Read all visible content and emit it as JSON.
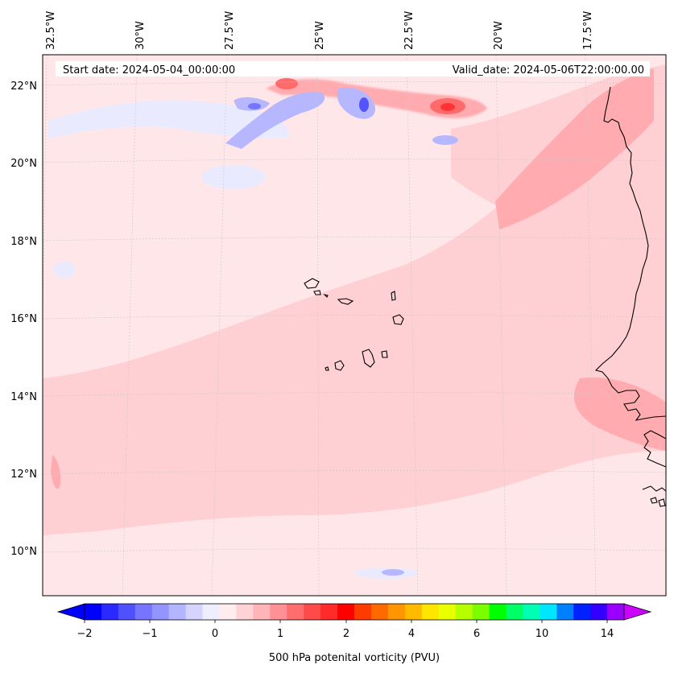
{
  "header": {
    "start_date": "Start date: 2024-05-04_00:00:00",
    "valid_date": "Valid_date: 2024-05-06T22:00:00.00"
  },
  "map": {
    "lon_labels": [
      "32.5°W",
      "30°W",
      "27.5°W",
      "25°W",
      "22.5°W",
      "20°W",
      "17.5°W"
    ],
    "lat_labels": [
      "22°N",
      "20°N",
      "18°N",
      "16°N",
      "14°N",
      "12°N",
      "10°N"
    ],
    "field_colors": {
      "background": "#ffe6e9",
      "light_red": "#ffd0d3",
      "medium_red": "#ffabaf",
      "strong_red": "#ff6b6b",
      "light_blue": "#eaeaff",
      "medium_blue": "#b7b7ff",
      "strong_blue": "#5454ff",
      "coastline": "#000000"
    }
  },
  "colorbar": {
    "label": "500 hPa potenital vorticity (PVU)",
    "tick_labels": [
      "−2",
      "−1",
      "0",
      "1",
      "2",
      "4",
      "6",
      "10",
      "14"
    ],
    "colors": [
      "#0000ff",
      "#2a2aff",
      "#5050ff",
      "#7575ff",
      "#9494ff",
      "#b4b4ff",
      "#d4d4ff",
      "#eeeeff",
      "#ffecee",
      "#ffd3d5",
      "#ffb4b7",
      "#ff9095",
      "#ff6d6d",
      "#ff4a4a",
      "#ff2a2a",
      "#ff0000",
      "#ff3b00",
      "#ff6a00",
      "#ff9500",
      "#ffba00",
      "#ffe600",
      "#e8ff00",
      "#b6ff00",
      "#7bff00",
      "#00ff00",
      "#00ff66",
      "#00ffb3",
      "#00e6ff",
      "#0080ff",
      "#0022ff",
      "#3300ff",
      "#9900ff"
    ],
    "under_color": "#0000ff",
    "over_color": "#cc00ff"
  }
}
